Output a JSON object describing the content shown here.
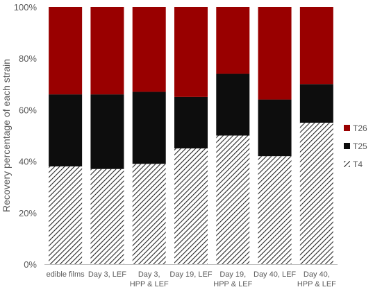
{
  "chart_data": {
    "type": "bar",
    "stacked": true,
    "percent_stacked": true,
    "ylabel": "Recovery percentage of each strain",
    "ylim": [
      0,
      100
    ],
    "yticks": [
      "0%",
      "20%",
      "40%",
      "60%",
      "80%",
      "100%"
    ],
    "categories": [
      [
        "edible films"
      ],
      [
        "Day 3, LEF"
      ],
      [
        "Day 3,",
        "HPP & LEF"
      ],
      [
        "Day 19, LEF"
      ],
      [
        "Day 19,",
        "HPP & LEF"
      ],
      [
        "Day 40, LEF"
      ],
      [
        "Day 40,",
        "HPP & LEF"
      ]
    ],
    "series": [
      {
        "name": "T4",
        "values": [
          38,
          37,
          39,
          45,
          50,
          42,
          55
        ],
        "color": "#ffffff",
        "pattern": "diagonal-hatch"
      },
      {
        "name": "T25",
        "values": [
          28,
          29,
          28,
          20,
          24,
          22,
          15
        ],
        "color": "#0d0d0d"
      },
      {
        "name": "T26",
        "values": [
          34,
          34,
          33,
          35,
          26,
          36,
          30
        ],
        "color": "#990000"
      }
    ],
    "legend": {
      "placement": "right",
      "order": [
        "T26",
        "T25",
        "T4"
      ]
    },
    "grid": false
  }
}
